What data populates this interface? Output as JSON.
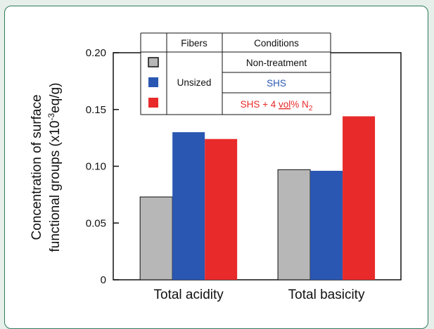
{
  "chart_data": {
    "type": "bar",
    "ylabel_line1": "Concentration of surface",
    "ylabel_line2": "functional groups (x10",
    "ylabel_sup": "-3",
    "ylabel_line2_end": "eq/g)",
    "categories": [
      "Total acidity",
      "Total basicity"
    ],
    "series": [
      {
        "name": "Non-treatment",
        "color": "#b7b7b7",
        "values": [
          0.073,
          0.097
        ]
      },
      {
        "name": "SHS",
        "color": "#2a57b2",
        "values": [
          0.13,
          0.096
        ]
      },
      {
        "name": "SHS + 4 vol% N2",
        "color": "#e82a2a",
        "values": [
          0.124,
          0.144
        ]
      }
    ],
    "ylim": [
      0,
      0.2
    ],
    "yticks": [
      "0",
      "0.05",
      "0.10",
      "0.15",
      "0.20"
    ],
    "ytick_values": [
      0,
      0.05,
      0.1,
      0.15,
      0.2
    ],
    "legend": {
      "placement": "top",
      "header_fibers": "Fibers",
      "header_conditions": "Conditions",
      "fiber_group": "Unsized",
      "rows": [
        {
          "label": "Non-treatment",
          "color": "#b7b7b7",
          "text_color": "#111111"
        },
        {
          "label": "SHS",
          "color": "#2a57b2",
          "text_color": "#2a57b2"
        },
        {
          "label_main": "SHS + 4 ",
          "label_u": "vol",
          "label_rest": "% N",
          "label_sub": "2",
          "color": "#e82a2a",
          "text_color": "#e82a2a"
        }
      ]
    }
  }
}
